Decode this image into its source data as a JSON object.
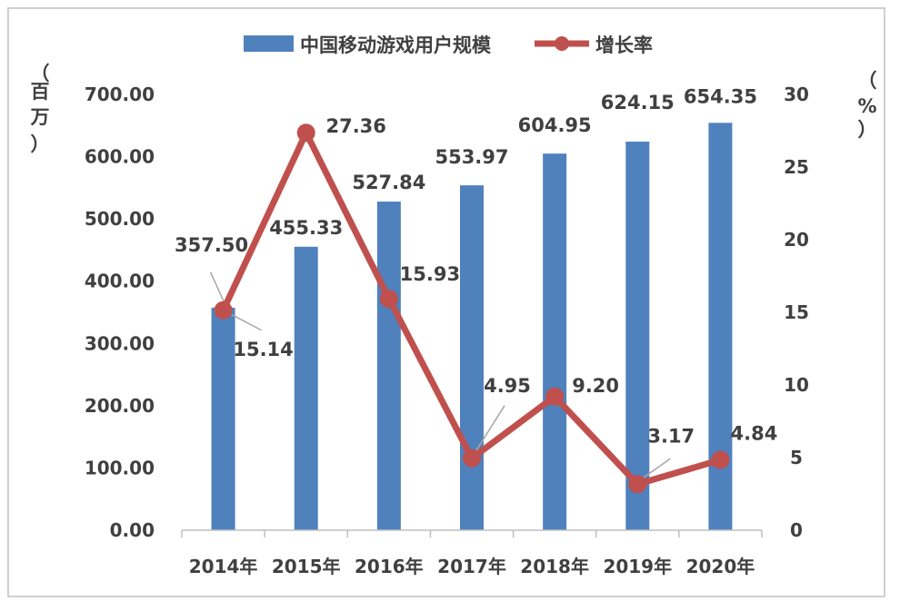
{
  "chart_data": {
    "type": "bar+line",
    "categories": [
      "2014年",
      "2015年",
      "2016年",
      "2017年",
      "2018年",
      "2019年",
      "2020年"
    ],
    "series": [
      {
        "name": "中国移动游戏用户规模",
        "type": "bar",
        "axis": "left",
        "color": "#4f81bd",
        "values": [
          357.5,
          455.33,
          527.84,
          553.97,
          604.95,
          624.15,
          654.35
        ],
        "labels": [
          "357.50",
          "455.33",
          "527.84",
          "553.97",
          "604.95",
          "624.15",
          "654.35"
        ]
      },
      {
        "name": "增长率",
        "type": "line",
        "axis": "right",
        "color": "#c0504d",
        "values": [
          15.14,
          27.36,
          15.93,
          4.95,
          9.2,
          3.17,
          4.84
        ],
        "labels": [
          "15.14",
          "27.36",
          "15.93",
          "4.95",
          "9.20",
          "3.17",
          "4.84"
        ]
      }
    ],
    "left_axis": {
      "label_chars": [
        "（",
        "百",
        "万",
        "）"
      ],
      "ylim": [
        0,
        700
      ],
      "ticks": [
        "0.00",
        "100.00",
        "200.00",
        "300.00",
        "400.00",
        "500.00",
        "600.00",
        "700.00"
      ]
    },
    "right_axis": {
      "label_chars": [
        "（",
        "%",
        "）"
      ],
      "ylim": [
        0,
        30
      ],
      "ticks": [
        "0",
        "5",
        "10",
        "15",
        "20",
        "25",
        "30"
      ]
    },
    "legend_position": "top",
    "grid": false
  }
}
